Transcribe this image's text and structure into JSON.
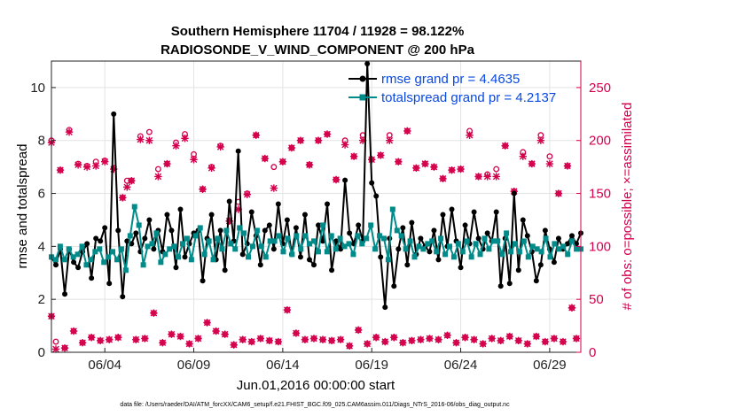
{
  "chart_data": {
    "type": "line",
    "title": [
      "Southern Hemisphere 11704 / 11928 = 98.122%",
      "RADIOSONDE_V_WIND_COMPONENT @ 200 hPa"
    ],
    "xlabel": "Jun.01,2016 00:00:00 start",
    "ylabel_left": "rmse and totalspread",
    "ylabel_right": "# of obs: o=possible; ×=assimilated",
    "footer": "data file: /Users/raeder/DAI/ATM_forcXX/CAM6_setup/f.e21.FHIST_BGC.f09_025.CAM6assim.011/Diags_NTrS_2016-06/obs_diag_output.nc",
    "x_ticks": [
      {
        "day": 4,
        "label": "06/04"
      },
      {
        "day": 9,
        "label": "06/09"
      },
      {
        "day": 14,
        "label": "06/14"
      },
      {
        "day": 19,
        "label": "06/19"
      },
      {
        "day": 24,
        "label": "06/24"
      },
      {
        "day": 29,
        "label": "06/29"
      }
    ],
    "xlim": [
      1.0,
      30.75
    ],
    "ylim_left": [
      0,
      11
    ],
    "ylim_right": [
      0,
      275
    ],
    "y_ticks_left": [
      0,
      2,
      4,
      6,
      8,
      10
    ],
    "y_ticks_right": [
      0,
      50,
      100,
      150,
      200,
      250
    ],
    "colors": {
      "rmse": "#000000",
      "spread": "#008b8b",
      "obs": "#d4004c",
      "legend_text": "#0a48e0"
    },
    "series": [
      {
        "name": "rmse grand pr = 4.4635",
        "axis": "left",
        "values": [
          3.6,
          3.3,
          3.9,
          2.2,
          3.9,
          3.4,
          3.2,
          3.8,
          4.1,
          2.8,
          4.3,
          4.2,
          4.7,
          2.6,
          9.0,
          4.6,
          2.1,
          4.2,
          4.1,
          4.5,
          3.8,
          4.3,
          5.0,
          3.9,
          4.6,
          3.8,
          5.2,
          4.6,
          3.2,
          5.4,
          3.6,
          4.1,
          4.5,
          4.6,
          2.7,
          4.3,
          5.2,
          3.5,
          4.6,
          3.1,
          5.7,
          4.2,
          7.6,
          3.7,
          4.1,
          5.3,
          4.4,
          3.3,
          4.6,
          4.8,
          3.9,
          5.6,
          4.1,
          5.0,
          3.7,
          4.7,
          3.6,
          5.2,
          3.5,
          3.3,
          4.8,
          4.2,
          5.6,
          3.1,
          4.2,
          3.9,
          6.5,
          4.5,
          4.1,
          4.8,
          4.2,
          10.9,
          6.4,
          5.9,
          3.6,
          1.7,
          4.3,
          2.5,
          3.9,
          4.7,
          3.3,
          4.9,
          3.7,
          4.3,
          4.0,
          3.8,
          4.6,
          3.5,
          5.2,
          4.0,
          5.4,
          4.2,
          3.2,
          4.8,
          4.1,
          5.3,
          4.3,
          3.9,
          4.5,
          4.2,
          5.3,
          2.5,
          4.3,
          2.6,
          6.0,
          3.1,
          5.0,
          4.4,
          3.8,
          2.7,
          3.3,
          4.6,
          3.9,
          3.4,
          4.3,
          3.9,
          4.1,
          4.4,
          4.1,
          4.5
        ]
      },
      {
        "name": "totalspread grand pr = 4.2137",
        "axis": "left",
        "values": [
          3.6,
          3.5,
          4.0,
          3.5,
          3.9,
          3.6,
          3.7,
          4.0,
          3.3,
          3.5,
          3.8,
          3.9,
          3.4,
          3.6,
          3.8,
          3.5,
          3.9,
          3.1,
          4.4,
          5.5,
          4.8,
          3.3,
          4.0,
          4.1,
          4.5,
          3.4,
          3.7,
          3.9,
          4.0,
          3.6,
          4.1,
          4.3,
          3.5,
          4.4,
          4.7,
          3.7,
          4.2,
          3.5,
          4.3,
          3.9,
          4.6,
          4.1,
          3.9,
          4.7,
          4.5,
          3.6,
          4.0,
          4.6,
          4.0,
          3.6,
          4.2,
          4.2,
          4.4,
          3.8,
          4.3,
          3.7,
          4.4,
          3.9,
          4.4,
          4.1,
          4.2,
          3.8,
          4.8,
          3.8,
          4.4,
          3.9,
          4.3,
          4.0,
          4.1,
          3.7,
          4.4,
          4.1,
          4.3,
          4.8,
          3.9,
          4.4,
          4.3,
          3.5,
          5.4,
          4.6,
          4.4,
          3.9,
          4.2,
          3.6,
          4.0,
          3.9,
          4.1,
          4.2,
          3.8,
          4.3,
          3.7,
          4.0,
          3.6,
          4.1,
          3.8,
          4.2,
          3.6,
          4.1,
          3.7,
          4.3,
          3.9,
          4.2,
          4.2,
          3.7,
          4.5,
          3.8,
          4.1,
          3.8,
          4.2,
          3.6,
          4.0,
          3.9,
          3.8,
          4.3,
          3.6,
          4.1,
          3.9,
          4.0,
          3.7,
          4.2,
          3.9,
          3.9
        ]
      },
      {
        "name": "obs possible",
        "axis": "right",
        "marker": "o",
        "points": [
          [
            1.0,
            200
          ],
          [
            1.0,
            34
          ],
          [
            1.25,
            10
          ],
          [
            1.5,
            172
          ],
          [
            1.75,
            4
          ],
          [
            2.0,
            210
          ],
          [
            2.25,
            20
          ],
          [
            2.5,
            178
          ],
          [
            2.75,
            9
          ],
          [
            3.0,
            176
          ],
          [
            3.25,
            14
          ],
          [
            3.5,
            180
          ],
          [
            3.75,
            11
          ],
          [
            4.0,
            181
          ],
          [
            4.25,
            12
          ],
          [
            4.5,
            174
          ],
          [
            4.75,
            14
          ],
          [
            5.0,
            146
          ],
          [
            5.25,
            162
          ],
          [
            5.5,
            162
          ],
          [
            5.75,
            12
          ],
          [
            6.0,
            204
          ],
          [
            6.25,
            13
          ],
          [
            6.5,
            208
          ],
          [
            6.75,
            37
          ],
          [
            7.0,
            173
          ],
          [
            7.25,
            9
          ],
          [
            7.5,
            178
          ],
          [
            7.75,
            17
          ],
          [
            8.0,
            198
          ],
          [
            8.25,
            15
          ],
          [
            8.5,
            206
          ],
          [
            8.75,
            8
          ],
          [
            9.0,
            187
          ],
          [
            9.25,
            13
          ],
          [
            9.5,
            154
          ],
          [
            9.75,
            28
          ],
          [
            10.0,
            175
          ],
          [
            10.25,
            20
          ],
          [
            10.5,
            195
          ],
          [
            10.75,
            17
          ],
          [
            11.0,
            124
          ],
          [
            11.25,
            7
          ],
          [
            11.5,
            142
          ],
          [
            11.75,
            12
          ],
          [
            12.0,
            150
          ],
          [
            12.25,
            10
          ],
          [
            12.5,
            205
          ],
          [
            12.75,
            13
          ],
          [
            13.0,
            183
          ],
          [
            13.25,
            11
          ],
          [
            13.5,
            175
          ],
          [
            13.75,
            10
          ],
          [
            14.0,
            180
          ],
          [
            14.25,
            40
          ],
          [
            14.5,
            193
          ],
          [
            14.75,
            18
          ],
          [
            15.0,
            200
          ],
          [
            15.25,
            12
          ],
          [
            15.5,
            177
          ],
          [
            15.75,
            13
          ],
          [
            16.0,
            200
          ],
          [
            16.25,
            12
          ],
          [
            16.5,
            206
          ],
          [
            16.75,
            11
          ],
          [
            17.0,
            163
          ],
          [
            17.25,
            12
          ],
          [
            17.5,
            200
          ],
          [
            17.75,
            6
          ],
          [
            18.0,
            185
          ],
          [
            18.25,
            21
          ],
          [
            18.5,
            205
          ],
          [
            18.75,
            8
          ],
          [
            19.0,
            182
          ],
          [
            19.25,
            14
          ],
          [
            19.5,
            186
          ],
          [
            19.75,
            10
          ],
          [
            20.0,
            205
          ],
          [
            20.25,
            14
          ],
          [
            20.5,
            180
          ],
          [
            20.75,
            9
          ],
          [
            21.0,
            209
          ],
          [
            21.25,
            11
          ],
          [
            21.5,
            174
          ],
          [
            21.75,
            12
          ],
          [
            22.0,
            178
          ],
          [
            22.25,
            13
          ],
          [
            22.5,
            175
          ],
          [
            22.75,
            12
          ],
          [
            23.0,
            164
          ],
          [
            23.25,
            16
          ],
          [
            23.5,
            172
          ],
          [
            23.75,
            9
          ],
          [
            24.0,
            173
          ],
          [
            24.25,
            14
          ],
          [
            24.5,
            209
          ],
          [
            24.75,
            12
          ],
          [
            25.0,
            166
          ],
          [
            25.25,
            8
          ],
          [
            25.5,
            168
          ],
          [
            25.75,
            13
          ],
          [
            26.0,
            173
          ],
          [
            26.25,
            11
          ],
          [
            26.5,
            195
          ],
          [
            26.75,
            15
          ],
          [
            27.0,
            152
          ],
          [
            27.25,
            11
          ],
          [
            27.5,
            189
          ],
          [
            27.75,
            8
          ],
          [
            28.0,
            178
          ],
          [
            28.25,
            15
          ],
          [
            28.5,
            205
          ],
          [
            28.75,
            10
          ],
          [
            29.0,
            185
          ],
          [
            29.25,
            13
          ],
          [
            29.5,
            150
          ],
          [
            29.75,
            10
          ],
          [
            30.0,
            176
          ],
          [
            30.25,
            42
          ],
          [
            30.5,
            13
          ]
        ]
      },
      {
        "name": "obs assimilated",
        "axis": "right",
        "marker": "x",
        "points": [
          [
            1.0,
            198
          ],
          [
            1.0,
            34
          ],
          [
            1.25,
            3
          ],
          [
            1.5,
            172
          ],
          [
            1.75,
            4
          ],
          [
            2.0,
            208
          ],
          [
            2.25,
            20
          ],
          [
            2.5,
            177
          ],
          [
            2.75,
            9
          ],
          [
            3.0,
            175
          ],
          [
            3.25,
            14
          ],
          [
            3.5,
            176
          ],
          [
            3.75,
            11
          ],
          [
            4.0,
            180
          ],
          [
            4.25,
            12
          ],
          [
            4.5,
            173
          ],
          [
            4.75,
            14
          ],
          [
            5.0,
            146
          ],
          [
            5.25,
            156
          ],
          [
            5.5,
            162
          ],
          [
            5.75,
            12
          ],
          [
            6.0,
            201
          ],
          [
            6.25,
            13
          ],
          [
            6.5,
            200
          ],
          [
            6.75,
            37
          ],
          [
            7.0,
            166
          ],
          [
            7.25,
            9
          ],
          [
            7.5,
            178
          ],
          [
            7.75,
            17
          ],
          [
            8.0,
            195
          ],
          [
            8.25,
            15
          ],
          [
            8.5,
            202
          ],
          [
            8.75,
            8
          ],
          [
            9.0,
            182
          ],
          [
            9.25,
            13
          ],
          [
            9.5,
            154
          ],
          [
            9.75,
            28
          ],
          [
            10.0,
            174
          ],
          [
            10.25,
            20
          ],
          [
            10.5,
            194
          ],
          [
            10.75,
            17
          ],
          [
            11.0,
            124
          ],
          [
            11.25,
            7
          ],
          [
            11.5,
            135
          ],
          [
            11.75,
            12
          ],
          [
            12.0,
            149
          ],
          [
            12.25,
            10
          ],
          [
            12.5,
            205
          ],
          [
            12.75,
            13
          ],
          [
            13.0,
            183
          ],
          [
            13.25,
            11
          ],
          [
            13.5,
            155
          ],
          [
            13.75,
            10
          ],
          [
            14.0,
            180
          ],
          [
            14.25,
            40
          ],
          [
            14.5,
            193
          ],
          [
            14.75,
            18
          ],
          [
            15.0,
            200
          ],
          [
            15.25,
            12
          ],
          [
            15.5,
            177
          ],
          [
            15.75,
            13
          ],
          [
            16.0,
            200
          ],
          [
            16.25,
            12
          ],
          [
            16.5,
            206
          ],
          [
            16.75,
            11
          ],
          [
            17.0,
            163
          ],
          [
            17.25,
            12
          ],
          [
            17.5,
            196
          ],
          [
            17.75,
            6
          ],
          [
            18.0,
            185
          ],
          [
            18.25,
            21
          ],
          [
            18.5,
            200
          ],
          [
            18.75,
            8
          ],
          [
            19.0,
            182
          ],
          [
            19.25,
            14
          ],
          [
            19.5,
            186
          ],
          [
            19.75,
            10
          ],
          [
            20.0,
            200
          ],
          [
            20.25,
            14
          ],
          [
            20.5,
            180
          ],
          [
            20.75,
            9
          ],
          [
            21.0,
            209
          ],
          [
            21.25,
            11
          ],
          [
            21.5,
            174
          ],
          [
            21.75,
            12
          ],
          [
            22.0,
            178
          ],
          [
            22.25,
            13
          ],
          [
            22.5,
            175
          ],
          [
            22.75,
            12
          ],
          [
            23.0,
            164
          ],
          [
            23.25,
            16
          ],
          [
            23.5,
            172
          ],
          [
            23.75,
            9
          ],
          [
            24.0,
            173
          ],
          [
            24.25,
            14
          ],
          [
            24.5,
            205
          ],
          [
            24.75,
            12
          ],
          [
            25.0,
            166
          ],
          [
            25.25,
            8
          ],
          [
            25.5,
            166
          ],
          [
            25.75,
            13
          ],
          [
            26.0,
            166
          ],
          [
            26.25,
            11
          ],
          [
            26.5,
            195
          ],
          [
            26.75,
            15
          ],
          [
            27.0,
            152
          ],
          [
            27.25,
            11
          ],
          [
            27.5,
            185
          ],
          [
            27.75,
            8
          ],
          [
            28.0,
            178
          ],
          [
            28.25,
            15
          ],
          [
            28.5,
            200
          ],
          [
            28.75,
            10
          ],
          [
            29.0,
            178
          ],
          [
            29.25,
            13
          ],
          [
            29.5,
            150
          ],
          [
            29.75,
            10
          ],
          [
            30.0,
            176
          ],
          [
            30.25,
            42
          ],
          [
            30.5,
            13
          ]
        ]
      }
    ]
  }
}
